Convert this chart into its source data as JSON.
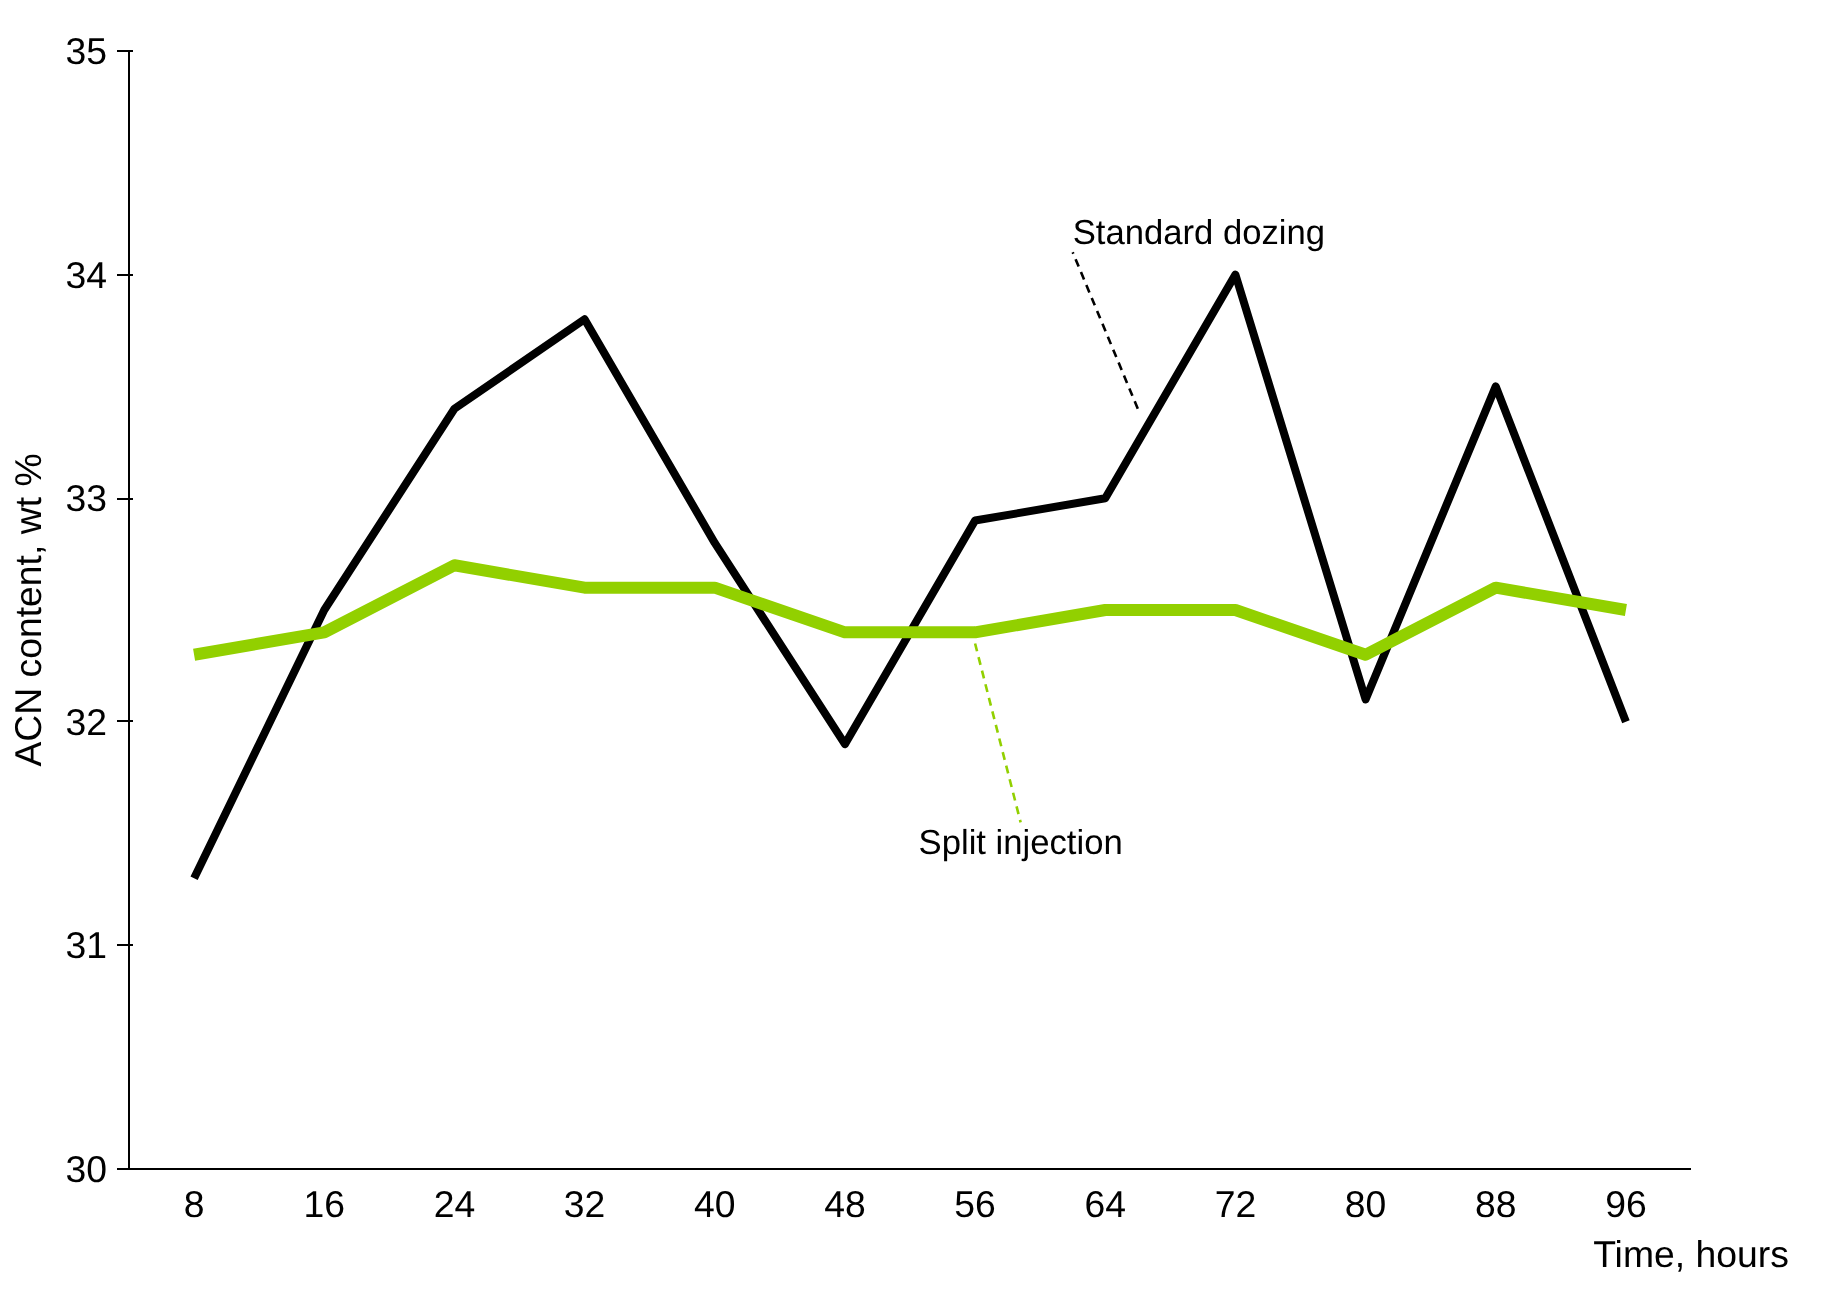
{
  "chart_data": {
    "type": "line",
    "xlabel": "Time, hours",
    "ylabel": "ACN content, wt %",
    "categories": [
      "8",
      "16",
      "24",
      "32",
      "40",
      "48",
      "56",
      "64",
      "72",
      "80",
      "88",
      "96"
    ],
    "series": [
      {
        "name": "Standard dozing",
        "color": "#000000",
        "values": [
          31.3,
          32.5,
          33.4,
          33.8,
          32.8,
          31.9,
          32.9,
          33.0,
          34.0,
          32.1,
          33.5,
          32.0
        ]
      },
      {
        "name": "Split injection",
        "color": "#92d000",
        "values": [
          32.3,
          32.4,
          32.7,
          32.6,
          32.6,
          32.4,
          32.4,
          32.5,
          32.5,
          32.3,
          32.6,
          32.5
        ]
      }
    ],
    "ylim": [
      30,
      35
    ],
    "yticks": [
      30,
      31,
      32,
      33,
      34,
      35
    ],
    "grid": false,
    "legend": false,
    "marker": "none",
    "line_style": "solid"
  }
}
